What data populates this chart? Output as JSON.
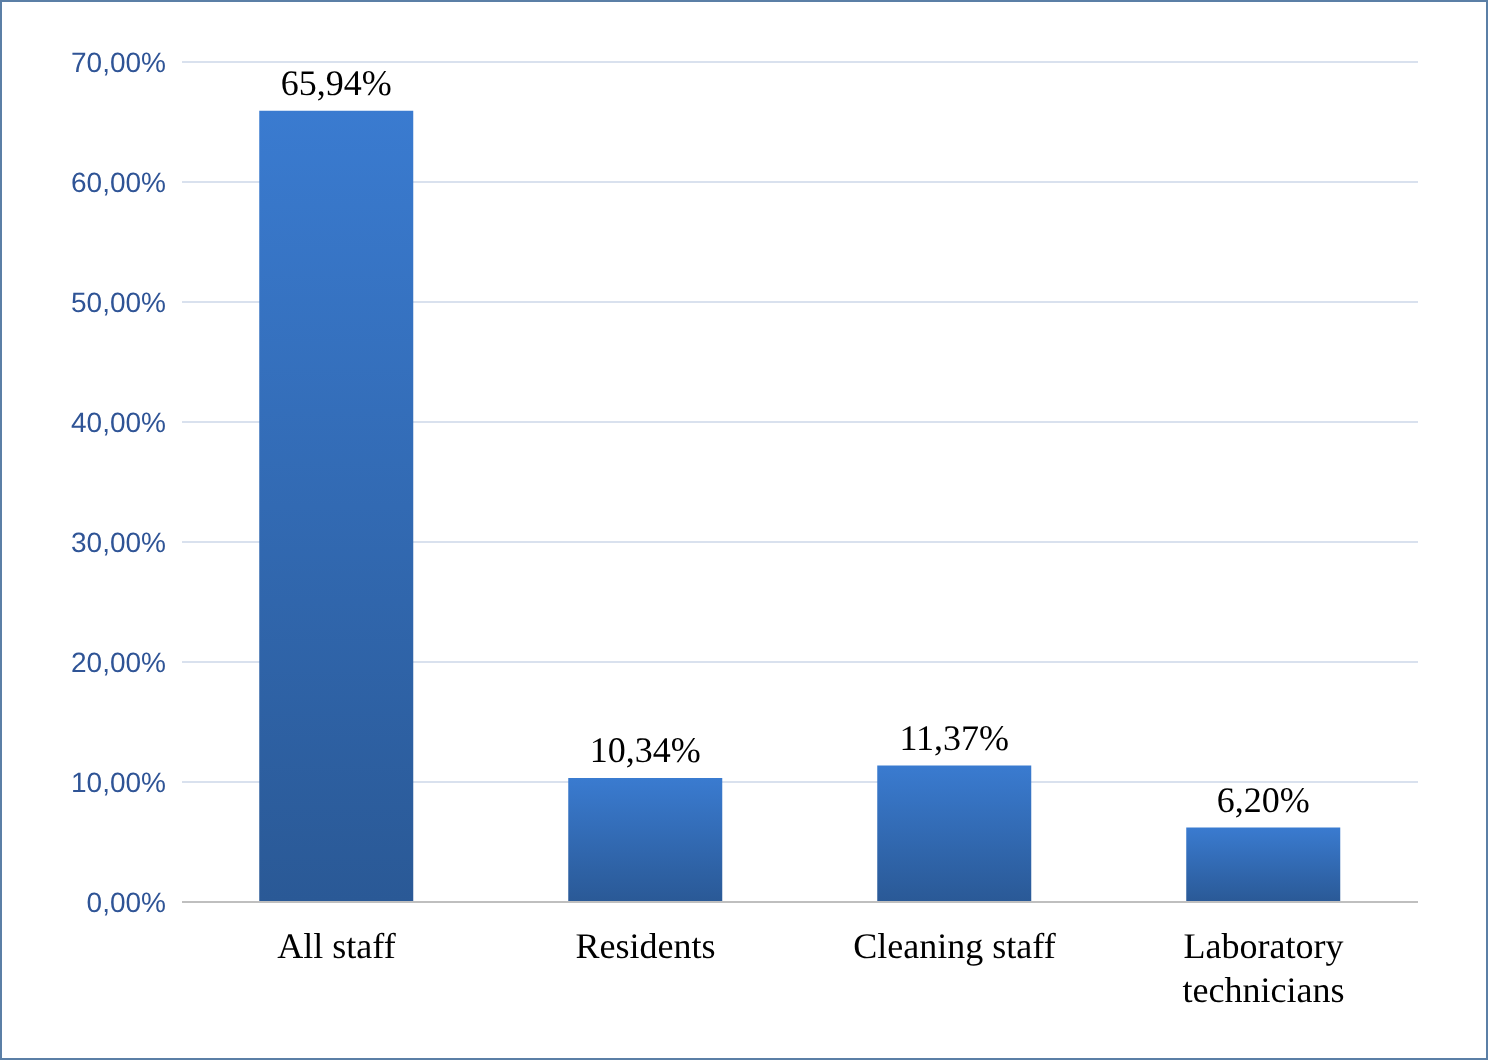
{
  "chart_data": {
    "type": "bar",
    "categories": [
      "All staff",
      "Residents",
      "Cleaning staff",
      "Laboratory technicians"
    ],
    "values": [
      65.94,
      10.34,
      11.37,
      6.2
    ],
    "value_labels": [
      "65,94%",
      "10,34%",
      "11,37%",
      "6,20%"
    ],
    "color": "#3a7bd0",
    "ylim": [
      0,
      70
    ],
    "yticks": [
      {
        "value": 0,
        "label": "0,00%"
      },
      {
        "value": 10,
        "label": "10,00%"
      },
      {
        "value": 20,
        "label": "20,00%"
      },
      {
        "value": 30,
        "label": "30,00%"
      },
      {
        "value": 40,
        "label": "40,00%"
      },
      {
        "value": 50,
        "label": "50,00%"
      },
      {
        "value": 60,
        "label": "60,00%"
      },
      {
        "value": 70,
        "label": "70,00%"
      }
    ],
    "grid": "y"
  }
}
